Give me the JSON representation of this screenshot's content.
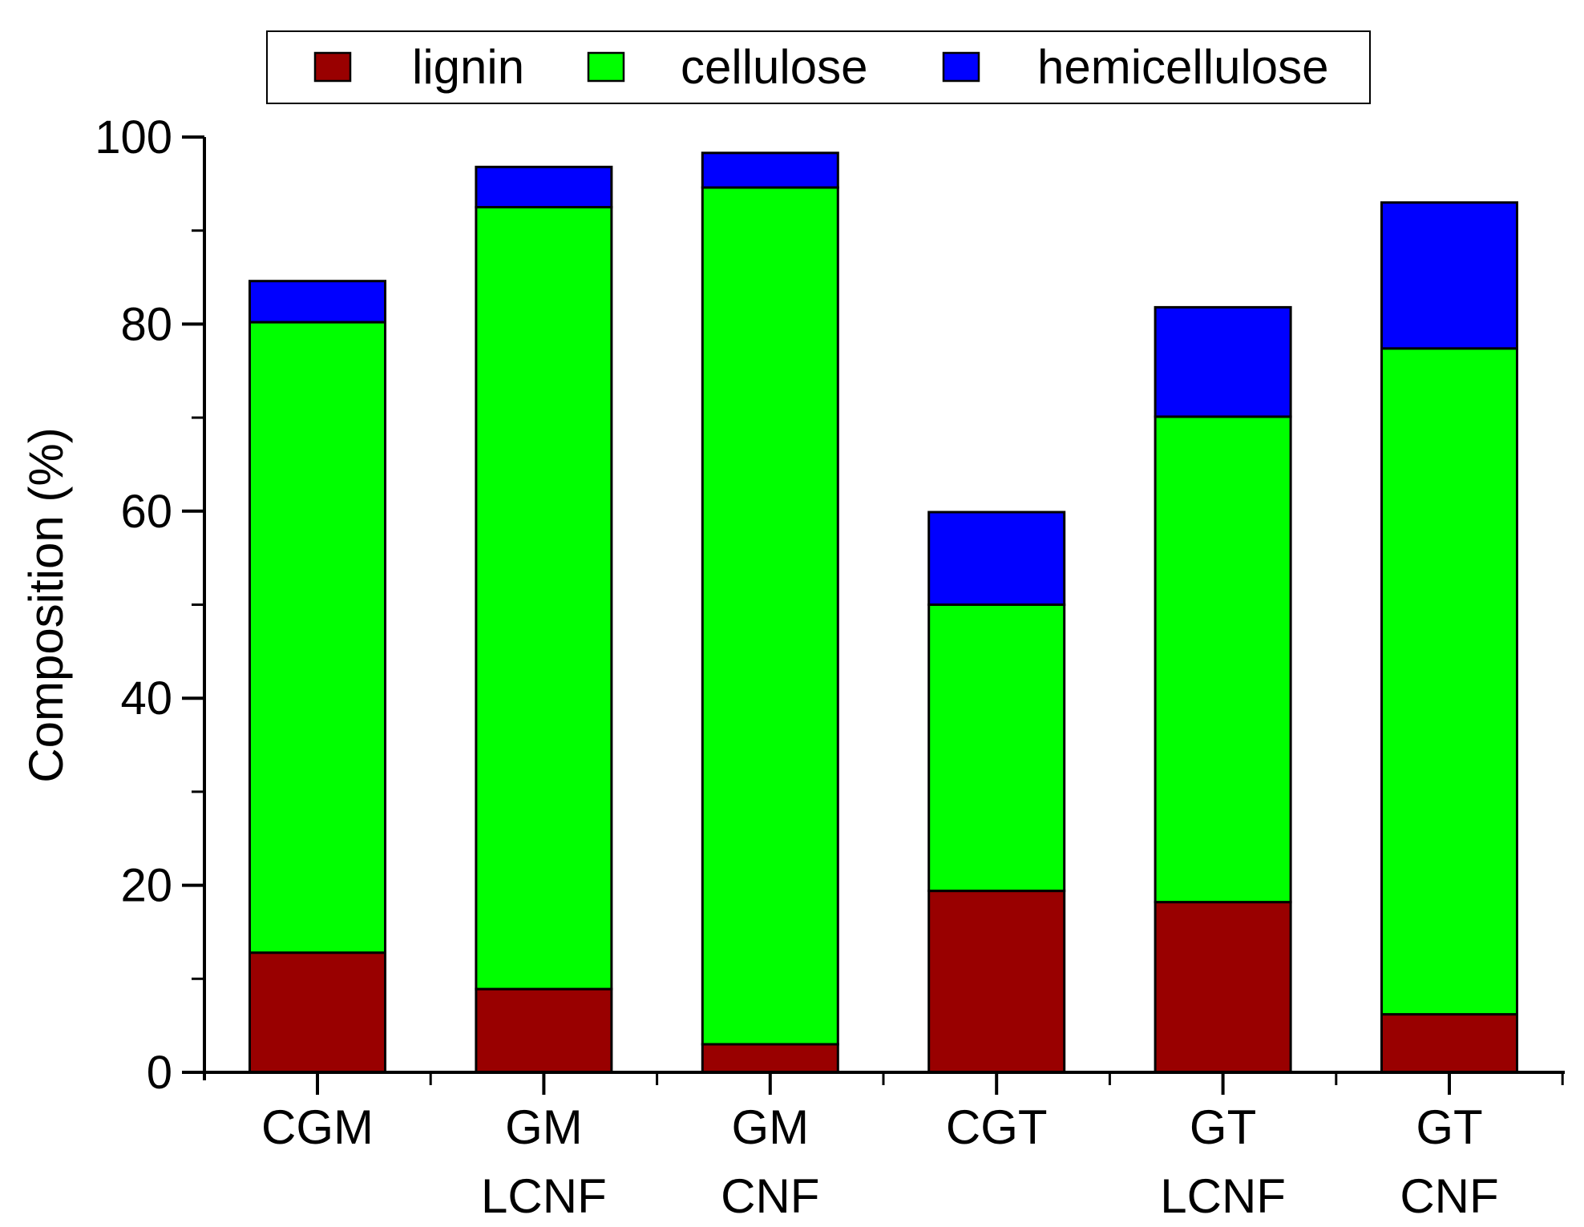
{
  "chart_data": {
    "type": "bar",
    "stacked": true,
    "title": "",
    "xlabel": "",
    "ylabel": "Composition (%)",
    "ylim": [
      0,
      100
    ],
    "yticks": [
      0,
      20,
      40,
      60,
      80,
      100
    ],
    "categories": [
      [
        "CGM"
      ],
      [
        "GM",
        "LCNF"
      ],
      [
        "GM",
        "CNF"
      ],
      [
        "CGT"
      ],
      [
        "GT",
        "LCNF"
      ],
      [
        "GT",
        "CNF"
      ]
    ],
    "series": [
      {
        "name": "lignin",
        "color": "#990000",
        "values": [
          12.8,
          8.9,
          3.0,
          19.4,
          18.2,
          6.2
        ]
      },
      {
        "name": "cellulose",
        "color": "#00ff00",
        "values": [
          67.4,
          83.6,
          91.6,
          30.6,
          51.9,
          71.2
        ]
      },
      {
        "name": "hemicellulose",
        "color": "#0000ff",
        "values": [
          4.4,
          4.3,
          3.7,
          9.9,
          11.7,
          15.6
        ]
      }
    ],
    "legend": {
      "position": "top"
    }
  }
}
